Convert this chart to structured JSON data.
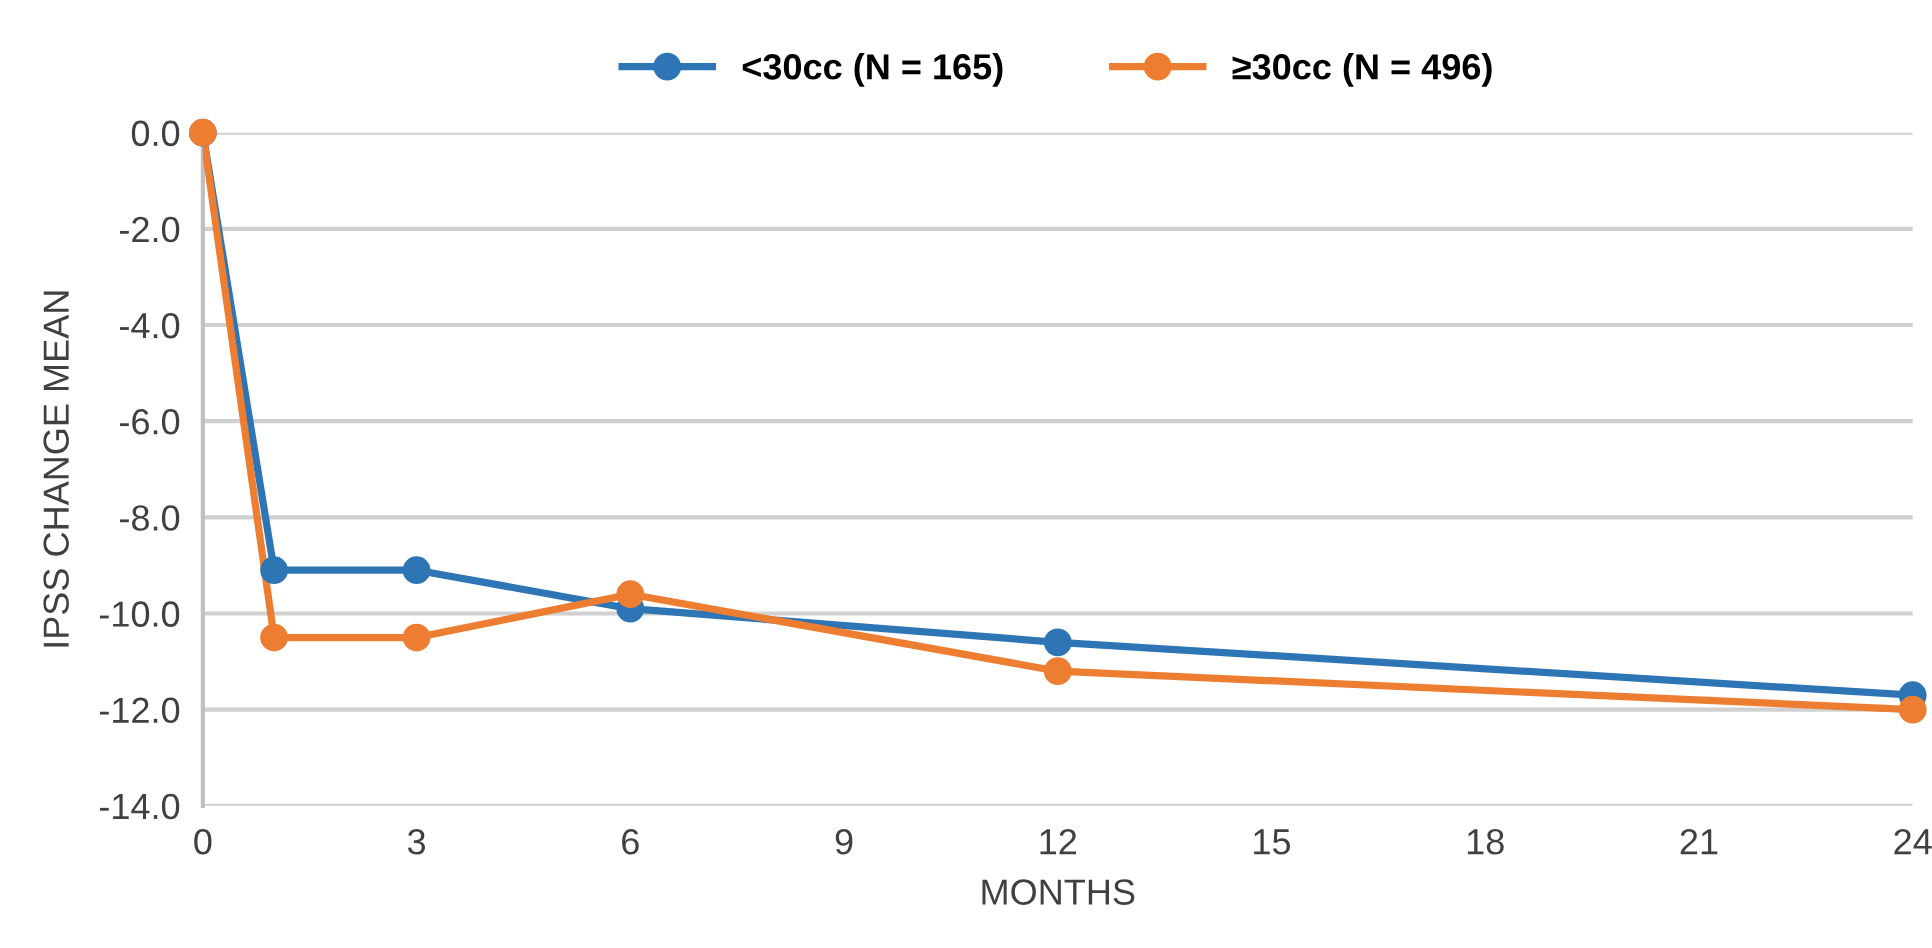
{
  "chart_data": {
    "type": "line",
    "xlabel": "MONTHS",
    "ylabel": "IPSS CHANGE MEAN",
    "x": [
      0,
      1,
      3,
      6,
      12,
      24
    ],
    "series": [
      {
        "name": "<30cc (N = 165)",
        "color": "#2e75b6",
        "values": [
          0.0,
          -9.1,
          -9.1,
          -9.9,
          -10.6,
          -11.7
        ]
      },
      {
        "name": "≥30cc (N = 496)",
        "color": "#ed7d31",
        "values": [
          0.0,
          -10.5,
          -10.5,
          -9.6,
          -11.2,
          -12.0
        ]
      }
    ],
    "xlim": [
      0,
      24
    ],
    "xticks": [
      0,
      3,
      6,
      9,
      12,
      15,
      18,
      21,
      24
    ],
    "ylim": [
      -14,
      0
    ],
    "yticks": [
      {
        "value": 0,
        "label": "0.0"
      },
      {
        "value": -2,
        "label": "-2.0"
      },
      {
        "value": -4,
        "label": "-4.0"
      },
      {
        "value": -6,
        "label": "-6.0"
      },
      {
        "value": -8,
        "label": "-8.0"
      },
      {
        "value": -10,
        "label": "-10.0"
      },
      {
        "value": -12,
        "label": "-12.0"
      },
      {
        "value": -14,
        "label": "-14.0"
      }
    ],
    "grid": "y",
    "legend": "top",
    "marker": "circle",
    "line_style": "solid"
  }
}
